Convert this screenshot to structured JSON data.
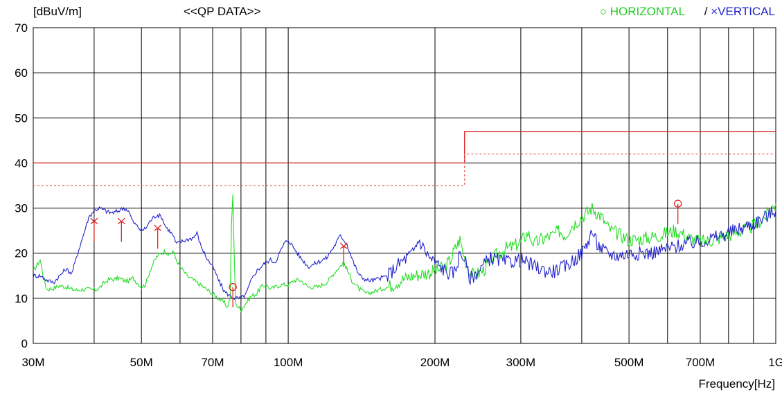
{
  "chart_data": {
    "type": "line",
    "title": "<<QP DATA>>",
    "ylabel": "[dBuV/m]",
    "xlabel": "Frequency[Hz]",
    "x_scale": "log",
    "xlim": [
      "30M",
      "1G"
    ],
    "ylim": [
      0,
      70
    ],
    "grid": true,
    "legend_position": "top-right",
    "legend": {
      "horizontal_symbol": "○",
      "horizontal_label": "HORIZONTAL",
      "separator": "/",
      "vertical_symbol": "×",
      "vertical_label": "VERTICAL"
    },
    "x_ticks": [
      {
        "label": "30M",
        "mhz": 30
      },
      {
        "label": "50M",
        "mhz": 50
      },
      {
        "label": "70M",
        "mhz": 70
      },
      {
        "label": "100M",
        "mhz": 100
      },
      {
        "label": "200M",
        "mhz": 200
      },
      {
        "label": "300M",
        "mhz": 300
      },
      {
        "label": "500M",
        "mhz": 500
      },
      {
        "label": "700M",
        "mhz": 700
      },
      {
        "label": "1G",
        "mhz": 1000
      }
    ],
    "x_gridlines_mhz": [
      30,
      40,
      50,
      60,
      70,
      80,
      90,
      100,
      200,
      300,
      400,
      500,
      600,
      700,
      800,
      900,
      1000
    ],
    "y_ticks": [
      0,
      10,
      20,
      30,
      40,
      50,
      60,
      70
    ],
    "limits": [
      {
        "name": "limit",
        "style": "solid",
        "color": "#dd2222",
        "segments": [
          {
            "from_mhz": 30,
            "to_mhz": 230,
            "value": 40
          },
          {
            "from_mhz": 230,
            "to_mhz": 1000,
            "value": 47
          }
        ]
      },
      {
        "name": "margin",
        "style": "dashed",
        "color": "#e86060",
        "segments": [
          {
            "from_mhz": 30,
            "to_mhz": 230,
            "value": 35
          },
          {
            "from_mhz": 230,
            "to_mhz": 1000,
            "value": 42
          }
        ]
      }
    ],
    "series": [
      {
        "name": "HORIZONTAL",
        "color": "#22dd22",
        "points": [
          [
            30,
            16
          ],
          [
            30.6,
            17.5
          ],
          [
            31,
            18.5
          ],
          [
            31.6,
            14
          ],
          [
            32,
            12
          ],
          [
            33,
            12.2
          ],
          [
            34,
            12.8
          ],
          [
            35,
            12.5
          ],
          [
            36,
            12
          ],
          [
            37,
            11.8
          ],
          [
            38,
            12
          ],
          [
            39,
            12
          ],
          [
            40,
            11.8
          ],
          [
            41,
            12.3
          ],
          [
            42,
            13.5
          ],
          [
            43,
            14.2
          ],
          [
            44,
            14.2
          ],
          [
            45,
            14.5
          ],
          [
            46,
            14
          ],
          [
            47,
            13.8
          ],
          [
            48,
            14.5
          ],
          [
            49,
            13.5
          ],
          [
            50,
            12.5
          ],
          [
            51,
            13
          ],
          [
            52,
            16
          ],
          [
            53,
            18
          ],
          [
            54,
            19.5
          ],
          [
            55,
            20
          ],
          [
            56,
            20.5
          ],
          [
            57,
            19.5
          ],
          [
            58,
            20.5
          ],
          [
            59,
            18.5
          ],
          [
            60,
            17
          ],
          [
            61,
            16
          ],
          [
            62,
            15
          ],
          [
            63,
            14.5
          ],
          [
            64,
            14
          ],
          [
            65,
            13.5
          ],
          [
            66,
            13
          ],
          [
            67,
            12.5
          ],
          [
            68,
            12
          ],
          [
            70,
            11
          ],
          [
            72,
            10
          ],
          [
            74,
            9
          ],
          [
            75,
            8
          ],
          [
            76,
            10
          ],
          [
            76.5,
            26
          ],
          [
            77,
            33
          ],
          [
            77.5,
            20
          ],
          [
            78,
            9
          ],
          [
            79,
            8
          ],
          [
            80,
            7.5
          ],
          [
            82,
            9
          ],
          [
            84,
            10.5
          ],
          [
            86,
            11
          ],
          [
            88,
            12.5
          ],
          [
            90,
            13
          ],
          [
            92,
            12
          ],
          [
            94,
            12.5
          ],
          [
            97,
            13
          ],
          [
            100,
            13
          ],
          [
            103,
            14
          ],
          [
            106,
            14
          ],
          [
            110,
            12.5
          ],
          [
            115,
            12.5
          ],
          [
            120,
            13.5
          ],
          [
            125,
            16
          ],
          [
            130,
            18
          ],
          [
            135,
            14
          ],
          [
            140,
            12
          ],
          [
            145,
            11
          ],
          [
            150,
            11.5
          ],
          [
            160,
            12.5
          ],
          [
            170,
            14
          ],
          [
            180,
            15
          ],
          [
            190,
            15.5
          ],
          [
            200,
            16
          ],
          [
            210,
            17
          ],
          [
            215,
            18.5
          ],
          [
            220,
            21
          ],
          [
            225,
            23
          ],
          [
            230,
            19
          ],
          [
            235,
            16
          ],
          [
            240,
            15
          ],
          [
            250,
            16
          ],
          [
            260,
            18
          ],
          [
            270,
            20
          ],
          [
            280,
            21
          ],
          [
            290,
            21.5
          ],
          [
            300,
            22.5
          ],
          [
            310,
            24.5
          ],
          [
            320,
            22
          ],
          [
            330,
            23
          ],
          [
            340,
            23.5
          ],
          [
            350,
            24
          ],
          [
            360,
            25
          ],
          [
            370,
            24
          ],
          [
            380,
            26
          ],
          [
            390,
            27
          ],
          [
            400,
            28
          ],
          [
            410,
            29
          ],
          [
            420,
            30
          ],
          [
            430,
            29
          ],
          [
            440,
            28
          ],
          [
            450,
            26
          ],
          [
            460,
            25
          ],
          [
            470,
            24.5
          ],
          [
            480,
            24
          ],
          [
            490,
            23.5
          ],
          [
            500,
            23
          ],
          [
            520,
            23
          ],
          [
            550,
            23.5
          ],
          [
            580,
            24
          ],
          [
            600,
            24.5
          ],
          [
            620,
            25
          ],
          [
            640,
            24.5
          ],
          [
            660,
            23.5
          ],
          [
            680,
            23
          ],
          [
            700,
            22.5
          ],
          [
            750,
            23
          ],
          [
            800,
            24
          ],
          [
            850,
            25
          ],
          [
            900,
            26
          ],
          [
            950,
            28
          ],
          [
            1000,
            31
          ]
        ]
      },
      {
        "name": "VERTICAL",
        "color": "#2222cc",
        "points": [
          [
            30,
            15
          ],
          [
            31,
            15
          ],
          [
            32,
            14
          ],
          [
            33,
            13.5
          ],
          [
            34,
            15
          ],
          [
            35,
            16.5
          ],
          [
            36,
            15.5
          ],
          [
            37,
            20
          ],
          [
            38,
            24
          ],
          [
            39,
            28
          ],
          [
            40,
            29.5
          ],
          [
            41,
            30
          ],
          [
            42,
            29.5
          ],
          [
            43,
            29
          ],
          [
            44,
            29
          ],
          [
            45,
            29.5
          ],
          [
            46,
            30
          ],
          [
            47,
            29.5
          ],
          [
            48,
            27
          ],
          [
            49,
            26
          ],
          [
            50,
            25
          ],
          [
            51,
            25.5
          ],
          [
            52,
            27
          ],
          [
            53,
            28
          ],
          [
            54,
            28.5
          ],
          [
            55,
            28
          ],
          [
            56,
            26
          ],
          [
            57,
            25
          ],
          [
            58,
            24
          ],
          [
            59,
            22
          ],
          [
            60,
            22.5
          ],
          [
            62,
            23
          ],
          [
            64,
            23.5
          ],
          [
            65,
            24.5
          ],
          [
            66,
            22
          ],
          [
            68,
            19
          ],
          [
            70,
            17
          ],
          [
            72,
            14
          ],
          [
            74,
            11.5
          ],
          [
            76,
            10.5
          ],
          [
            78,
            10
          ],
          [
            80,
            10
          ],
          [
            82,
            11
          ],
          [
            84,
            14
          ],
          [
            86,
            16
          ],
          [
            88,
            17
          ],
          [
            90,
            18
          ],
          [
            92,
            18.5
          ],
          [
            94,
            18
          ],
          [
            96,
            20
          ],
          [
            98,
            22
          ],
          [
            100,
            23
          ],
          [
            103,
            21
          ],
          [
            106,
            19
          ],
          [
            110,
            17
          ],
          [
            115,
            18
          ],
          [
            120,
            19
          ],
          [
            125,
            22
          ],
          [
            128,
            24
          ],
          [
            132,
            22
          ],
          [
            136,
            18
          ],
          [
            140,
            15
          ],
          [
            145,
            14
          ],
          [
            150,
            14
          ],
          [
            160,
            15
          ],
          [
            170,
            18
          ],
          [
            180,
            20
          ],
          [
            185,
            23
          ],
          [
            190,
            21
          ],
          [
            195,
            19
          ],
          [
            200,
            18
          ],
          [
            205,
            17
          ],
          [
            210,
            16
          ],
          [
            215,
            15.5
          ],
          [
            220,
            16
          ],
          [
            225,
            20
          ],
          [
            230,
            19
          ],
          [
            235,
            14.5
          ],
          [
            240,
            15
          ],
          [
            250,
            17
          ],
          [
            260,
            19
          ],
          [
            270,
            18.5
          ],
          [
            280,
            18
          ],
          [
            300,
            18.5
          ],
          [
            320,
            17
          ],
          [
            340,
            16
          ],
          [
            350,
            16
          ],
          [
            370,
            17
          ],
          [
            390,
            19
          ],
          [
            400,
            20
          ],
          [
            410,
            22
          ],
          [
            420,
            25
          ],
          [
            430,
            22
          ],
          [
            440,
            21
          ],
          [
            450,
            20
          ],
          [
            470,
            19.5
          ],
          [
            480,
            19.5
          ],
          [
            500,
            20
          ],
          [
            550,
            20
          ],
          [
            600,
            21
          ],
          [
            650,
            22
          ],
          [
            700,
            22.5
          ],
          [
            750,
            23.5
          ],
          [
            800,
            24.5
          ],
          [
            850,
            25.5
          ],
          [
            900,
            26.5
          ],
          [
            950,
            28
          ],
          [
            1000,
            29.5
          ]
        ]
      }
    ],
    "markers": [
      {
        "series": "VERTICAL",
        "symbol": "x",
        "mhz": 40,
        "value": 27
      },
      {
        "series": "VERTICAL",
        "symbol": "x",
        "mhz": 45.5,
        "value": 27
      },
      {
        "series": "VERTICAL",
        "symbol": "x",
        "mhz": 54,
        "value": 25.5
      },
      {
        "series": "HORIZONTAL",
        "symbol": "o",
        "mhz": 77,
        "value": 12.5
      },
      {
        "series": "VERTICAL",
        "symbol": "x",
        "mhz": 130,
        "value": 21.5
      },
      {
        "series": "HORIZONTAL",
        "symbol": "o",
        "mhz": 630,
        "value": 31
      }
    ]
  }
}
